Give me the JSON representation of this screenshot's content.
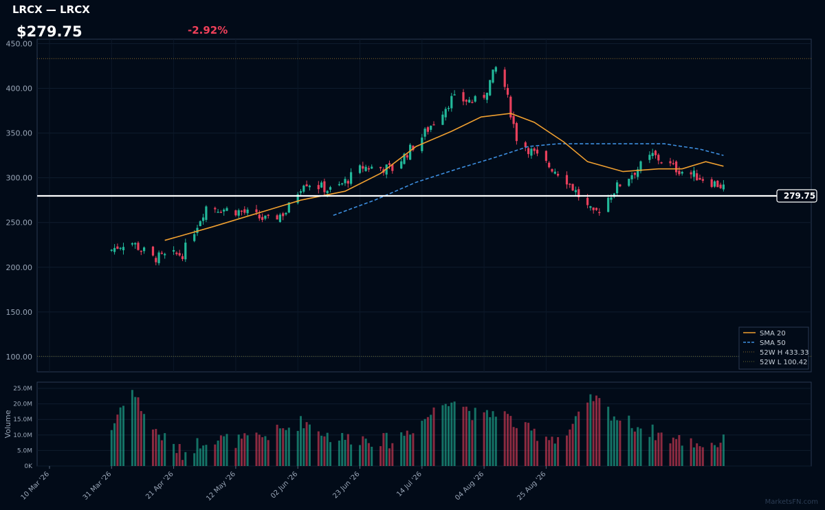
{
  "header": {
    "title": "LRCX — LRCX",
    "price": "$279.75",
    "change": "-2.92%"
  },
  "watermark": "MarketsFN.com",
  "colors": {
    "background": "#020b18",
    "up": "#22b89a",
    "down": "#e8405c",
    "sma20": "#f0a030",
    "sma50": "#3d8fe0",
    "price_line": "#ffffff",
    "ref_line": "#6a6a2a"
  },
  "chart_data": {
    "type": "candlestick",
    "title": "LRCX — LRCX",
    "x_tick_labels": [
      "10 Mar '26",
      "31 Mar '26",
      "21 Apr '26",
      "12 May '26",
      "02 Jun '26",
      "23 Jun '26",
      "14 Jul '26",
      "04 Aug '26",
      "25 Aug '26"
    ],
    "price_axis": {
      "ylim": [
        83,
        455
      ],
      "ticks": [
        "100.00",
        "150.00",
        "200.00",
        "250.00",
        "300.00",
        "350.00",
        "400.00",
        "450.00"
      ]
    },
    "volume_axis": {
      "label": "Volume",
      "ylim": [
        0,
        27000000
      ],
      "ticks": [
        "0K",
        "5.0M",
        "10.0M",
        "15.0M",
        "20.0M",
        "25.0M"
      ]
    },
    "last_price": 279.75,
    "last_price_label": "279.75",
    "reference_lines": [
      {
        "name": "52W H 433.33",
        "value": 433.33
      },
      {
        "name": "52W L 100.42",
        "value": 100.42
      }
    ],
    "legend": {
      "position": "bottom-right",
      "entries": [
        "SMA 20",
        "SMA 50",
        "52W H 433.33",
        "52W L 100.42"
      ]
    },
    "candles_anchor": [
      {
        "day": 20,
        "close": 218,
        "vol": 9.5
      },
      {
        "day": 27,
        "close": 230,
        "vol": 26
      },
      {
        "day": 35,
        "close": 210,
        "vol": 12
      },
      {
        "day": 45,
        "close": 215,
        "vol": 4
      },
      {
        "day": 53,
        "close": 268,
        "vol": 9
      },
      {
        "day": 65,
        "close": 262,
        "vol": 8
      },
      {
        "day": 74,
        "close": 252,
        "vol": 10
      },
      {
        "day": 80,
        "close": 262,
        "vol": 12
      },
      {
        "day": 86,
        "close": 296,
        "vol": 14.5
      },
      {
        "day": 96,
        "close": 285,
        "vol": 9
      },
      {
        "day": 106,
        "close": 312,
        "vol": 9
      },
      {
        "day": 116,
        "close": 310,
        "vol": 8
      },
      {
        "day": 126,
        "close": 346,
        "vol": 14.5
      },
      {
        "day": 136,
        "close": 388,
        "vol": 22.5
      },
      {
        "day": 146,
        "close": 385,
        "vol": 15
      },
      {
        "day": 152,
        "close": 430,
        "vol": 18.5
      },
      {
        "day": 158,
        "close": 345,
        "vol": 13
      },
      {
        "day": 166,
        "close": 320,
        "vol": 10
      },
      {
        "day": 174,
        "close": 302,
        "vol": 9
      },
      {
        "day": 184,
        "close": 258,
        "vol": 22
      },
      {
        "day": 192,
        "close": 290,
        "vol": 15.5
      },
      {
        "day": 204,
        "close": 325,
        "vol": 11
      },
      {
        "day": 212,
        "close": 310,
        "vol": 8.5
      },
      {
        "day": 222,
        "close": 298,
        "vol": 7
      },
      {
        "day": 230,
        "close": 287,
        "vol": 8
      }
    ],
    "sma20_anchor": [
      [
        39,
        230
      ],
      [
        55,
        245
      ],
      [
        70,
        260
      ],
      [
        85,
        275
      ],
      [
        100,
        285
      ],
      [
        112,
        305
      ],
      [
        124,
        335
      ],
      [
        136,
        352
      ],
      [
        146,
        368
      ],
      [
        156,
        372
      ],
      [
        164,
        362
      ],
      [
        174,
        340
      ],
      [
        182,
        318
      ],
      [
        194,
        307
      ],
      [
        206,
        310
      ],
      [
        214,
        310
      ],
      [
        222,
        318
      ],
      [
        228,
        313
      ]
    ],
    "sma50_anchor": [
      [
        96,
        258
      ],
      [
        110,
        275
      ],
      [
        124,
        295
      ],
      [
        138,
        310
      ],
      [
        150,
        322
      ],
      [
        162,
        335
      ],
      [
        172,
        338
      ],
      [
        184,
        338
      ],
      [
        196,
        338
      ],
      [
        208,
        338
      ],
      [
        220,
        332
      ],
      [
        228,
        325
      ]
    ]
  }
}
